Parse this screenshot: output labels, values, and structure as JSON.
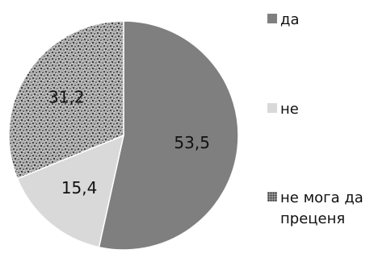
{
  "chart_data": {
    "type": "pie",
    "labels": [
      "да",
      "не",
      "не мога да преценя"
    ],
    "values": [
      53.5,
      15.4,
      31.2
    ],
    "value_labels": [
      "53,5",
      "15,4",
      "31,2"
    ],
    "colors": [
      "#7f7f7f",
      "#d9d9d9",
      "#9a9a9a"
    ],
    "patterns": [
      "solid",
      "solid",
      "speckle"
    ],
    "start_angle_deg": 0,
    "direction": "clockwise",
    "legend_position": "right"
  }
}
